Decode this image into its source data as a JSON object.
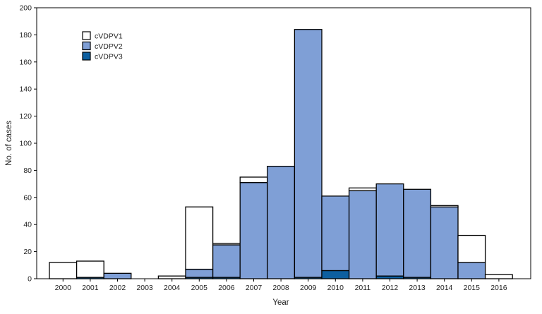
{
  "chart_data": {
    "type": "bar",
    "stacked": true,
    "xlabel": "Year",
    "ylabel": "No. of cases",
    "ylim": [
      0,
      200
    ],
    "yticks": [
      0,
      20,
      40,
      60,
      80,
      100,
      120,
      140,
      160,
      180,
      200
    ],
    "grid": false,
    "legend_position": "top-left",
    "categories": [
      "2000",
      "2001",
      "2002",
      "2003",
      "2004",
      "2005",
      "2006",
      "2007",
      "2008",
      "2009",
      "2010",
      "2011",
      "2012",
      "2013",
      "2014",
      "2015",
      "2016"
    ],
    "series": [
      {
        "name": "cVDPV3",
        "color": "#0d5fa0",
        "values": [
          0,
          1,
          0,
          0,
          0,
          1,
          1,
          0,
          0,
          1,
          6,
          0,
          2,
          1,
          0,
          0,
          0
        ]
      },
      {
        "name": "cVDPV2",
        "color": "#7f9fd6",
        "values": [
          0,
          0,
          4,
          0,
          0,
          6,
          24,
          71,
          83,
          183,
          55,
          65,
          68,
          65,
          53,
          12,
          0
        ]
      },
      {
        "name": "cVDPV1",
        "color": "#ffffff",
        "values": [
          12,
          12,
          0,
          0,
          2,
          46,
          1,
          4,
          0,
          0,
          0,
          2,
          0,
          0,
          1,
          20,
          3
        ]
      }
    ],
    "legend_order": [
      "cVDPV1",
      "cVDPV2",
      "cVDPV3"
    ]
  }
}
